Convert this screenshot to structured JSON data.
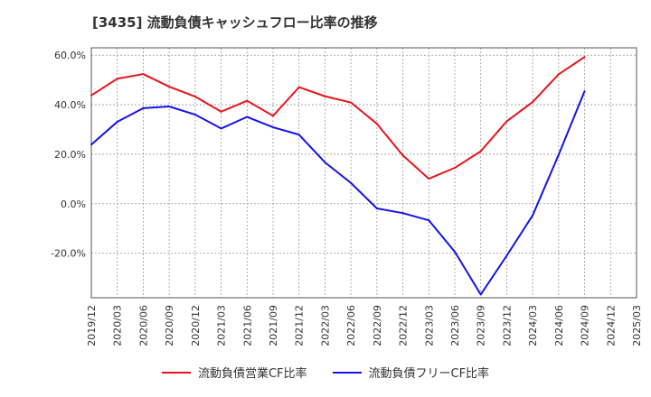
{
  "chart_data": {
    "type": "line",
    "title": "[3435]  流動負債キャッシュフロー比率の推移",
    "x": [
      "2019/12",
      "2020/03",
      "2020/06",
      "2020/09",
      "2020/12",
      "2021/03",
      "2021/06",
      "2021/09",
      "2021/12",
      "2022/03",
      "2022/06",
      "2022/09",
      "2022/12",
      "2023/03",
      "2023/06",
      "2023/09",
      "2023/12",
      "2024/03",
      "2024/06",
      "2024/09",
      "2024/12",
      "2025/03"
    ],
    "ylim": [
      -38,
      63
    ],
    "yticks": [
      60,
      40,
      20,
      0,
      -20
    ],
    "ytick_labels": [
      "60.0%",
      "40.0%",
      "20.0%",
      "0.0%",
      "-20.0%"
    ],
    "grid": true,
    "legend_position": "bottom",
    "series": [
      {
        "name": "流動負債営業CF比率",
        "color": "#e8141c",
        "values": [
          43.8,
          50.5,
          52.4,
          47.3,
          43.3,
          37.2,
          41.6,
          35.5,
          47.1,
          43.4,
          40.9,
          32.3,
          19.5,
          10.1,
          14.5,
          21.2,
          33.3,
          41.1,
          52.3,
          59.3,
          null,
          null
        ]
      },
      {
        "name": "流動負債フリーCF比率",
        "color": "#1414e6",
        "values": [
          23.9,
          33.1,
          38.6,
          39.3,
          36.0,
          30.4,
          35.1,
          30.9,
          27.9,
          16.7,
          8.4,
          -1.9,
          -3.8,
          -6.7,
          -19.4,
          -36.7,
          -21.0,
          -4.7,
          19.8,
          45.5,
          null,
          null
        ]
      }
    ]
  }
}
